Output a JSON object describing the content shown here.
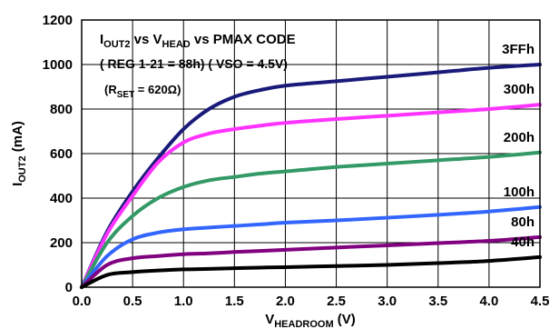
{
  "chart_data": {
    "type": "line",
    "annotation": {
      "line1": {
        "prefix": "I",
        "sub": "OUT2",
        "mid": " vs V",
        "sub2": "HEAD",
        "suffix": " vs PMAX CODE"
      },
      "line2": "( REG 1-21 = 88h) ( VSO = 4.5V)",
      "line3": {
        "prefix": "(R",
        "sub": "SET",
        "suffix": " = 620Ω)"
      }
    },
    "xlabel": {
      "main": "V",
      "sub": "HEADROOM",
      "unit": " (V)"
    },
    "ylabel": {
      "main": "I",
      "sub": "OUT2",
      "unit": " (mA)"
    },
    "xlim": [
      0,
      4.5
    ],
    "ylim": [
      0,
      1200
    ],
    "x_ticks": [
      "0.0",
      "0.5",
      "1.0",
      "1.5",
      "2.0",
      "2.5",
      "3.0",
      "3.5",
      "4.0",
      "4.5"
    ],
    "y_ticks": [
      "0",
      "200",
      "400",
      "600",
      "800",
      "1000",
      "1200"
    ],
    "grid": true,
    "series": [
      {
        "name": "3FFh",
        "color": "#1a1a7a",
        "x": [
          0,
          0.25,
          0.5,
          0.75,
          1.0,
          1.25,
          1.5,
          1.75,
          2.0,
          2.5,
          3.0,
          3.5,
          4.0,
          4.5
        ],
        "y": [
          0,
          250,
          430,
          580,
          710,
          800,
          855,
          885,
          905,
          925,
          945,
          965,
          985,
          1000
        ]
      },
      {
        "name": "300h",
        "color": "#ff33ff",
        "x": [
          0,
          0.25,
          0.5,
          0.75,
          1.0,
          1.25,
          1.5,
          1.75,
          2.0,
          2.5,
          3.0,
          3.5,
          4.0,
          4.5
        ],
        "y": [
          0,
          240,
          410,
          560,
          650,
          690,
          710,
          725,
          738,
          755,
          770,
          785,
          800,
          820
        ]
      },
      {
        "name": "200h",
        "color": "#339966",
        "x": [
          0,
          0.25,
          0.5,
          0.75,
          1.0,
          1.25,
          1.5,
          1.75,
          2.0,
          2.5,
          3.0,
          3.5,
          4.0,
          4.5
        ],
        "y": [
          0,
          200,
          320,
          400,
          450,
          480,
          495,
          510,
          520,
          540,
          555,
          570,
          585,
          605
        ]
      },
      {
        "name": "100h",
        "color": "#3366ff",
        "x": [
          0,
          0.25,
          0.5,
          0.75,
          1.0,
          1.25,
          1.5,
          1.75,
          2.0,
          2.5,
          3.0,
          3.5,
          4.0,
          4.5
        ],
        "y": [
          0,
          140,
          215,
          245,
          260,
          268,
          275,
          282,
          290,
          300,
          312,
          325,
          340,
          360
        ]
      },
      {
        "name": "80h",
        "color": "#800080",
        "x": [
          0,
          0.25,
          0.5,
          0.75,
          1.0,
          1.25,
          1.5,
          1.75,
          2.0,
          2.5,
          3.0,
          3.5,
          4.0,
          4.5
        ],
        "y": [
          0,
          100,
          130,
          140,
          148,
          152,
          158,
          163,
          168,
          178,
          188,
          198,
          208,
          225
        ]
      },
      {
        "name": "40h",
        "color": "#000000",
        "x": [
          0,
          0.25,
          0.5,
          0.75,
          1.0,
          1.25,
          1.5,
          1.75,
          2.0,
          2.5,
          3.0,
          3.5,
          4.0,
          4.5
        ],
        "y": [
          0,
          55,
          68,
          75,
          80,
          82,
          85,
          88,
          90,
          95,
          100,
          108,
          118,
          135
        ]
      }
    ]
  }
}
